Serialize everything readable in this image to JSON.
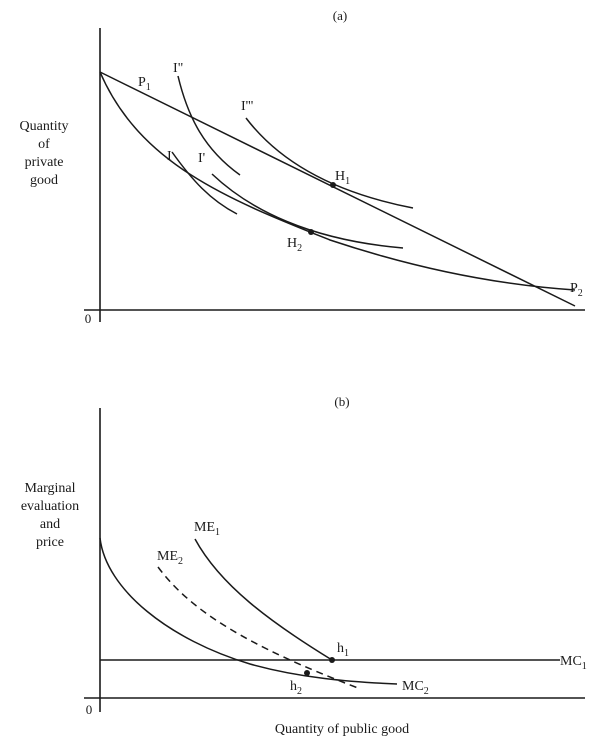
{
  "panel_a": {
    "title": "(a)",
    "ylabel": [
      "Quantity",
      "of",
      "private",
      "good"
    ],
    "origin": "0",
    "labels": {
      "P1": {
        "main": "P",
        "sub": "1"
      },
      "P2": {
        "main": "P",
        "sub": "2"
      },
      "I": {
        "main": "I",
        "sub": ""
      },
      "I1": {
        "main": "I'",
        "sub": ""
      },
      "I2": {
        "main": "I\"",
        "sub": ""
      },
      "I3": {
        "main": "I'''",
        "sub": ""
      },
      "H1": {
        "main": "H",
        "sub": "1"
      },
      "H2": {
        "main": "H",
        "sub": "2"
      }
    }
  },
  "panel_b": {
    "title": "(b)",
    "ylabel": [
      "Marginal",
      "evaluation",
      "and",
      "price"
    ],
    "origin": "0",
    "xlabel": "Quantity of public good",
    "labels": {
      "ME1": {
        "main": "ME",
        "sub": "1"
      },
      "ME2": {
        "main": "ME",
        "sub": "2"
      },
      "MC1": {
        "main": "MC",
        "sub": "1"
      },
      "MC2": {
        "main": "MC",
        "sub": "2"
      },
      "h1": {
        "main": "h",
        "sub": "1"
      },
      "h2": {
        "main": "h",
        "sub": "2"
      }
    }
  }
}
